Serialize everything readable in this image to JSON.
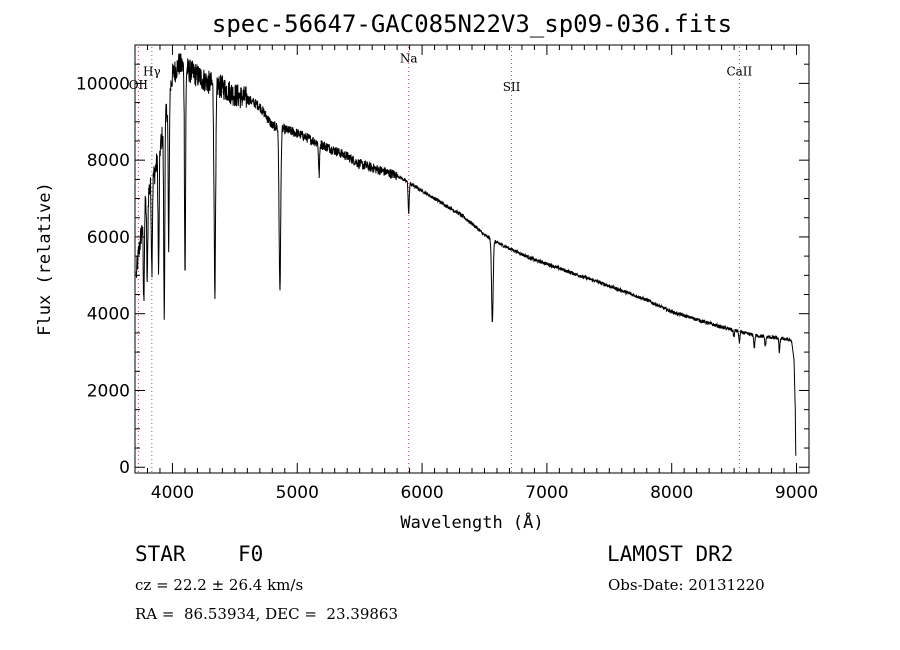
{
  "chart_data": {
    "type": "line",
    "title": "spec-56647-GAC085N22V3_sp09-036.fits",
    "xlabel": "Wavelength (Å)",
    "ylabel": "Flux (relative)",
    "xlim": [
      3700,
      9100
    ],
    "ylim": [
      -150,
      11000
    ],
    "xticks": [
      4000,
      5000,
      6000,
      7000,
      8000,
      9000
    ],
    "yticks": [
      0,
      2000,
      4000,
      6000,
      8000,
      10000
    ],
    "grid": false,
    "line_color": "#000000",
    "marker_color": "#d04040",
    "continuum": [
      [
        3710,
        5000
      ],
      [
        3730,
        5600
      ],
      [
        3760,
        6300
      ],
      [
        3790,
        7000
      ],
      [
        3820,
        7300
      ],
      [
        3860,
        7700
      ],
      [
        3900,
        8300
      ],
      [
        3950,
        9200
      ],
      [
        4000,
        10200
      ],
      [
        4050,
        10500
      ],
      [
        4100,
        10400
      ],
      [
        4150,
        10300
      ],
      [
        4200,
        10200
      ],
      [
        4300,
        10000
      ],
      [
        4400,
        9900
      ],
      [
        4500,
        9700
      ],
      [
        4600,
        9600
      ],
      [
        4700,
        9400
      ],
      [
        4800,
        8900
      ],
      [
        4900,
        8800
      ],
      [
        5000,
        8700
      ],
      [
        5100,
        8550
      ],
      [
        5200,
        8400
      ],
      [
        5300,
        8250
      ],
      [
        5400,
        8100
      ],
      [
        5500,
        7900
      ],
      [
        5600,
        7800
      ],
      [
        5700,
        7700
      ],
      [
        5800,
        7600
      ],
      [
        5900,
        7400
      ],
      [
        6000,
        7200
      ],
      [
        6100,
        7000
      ],
      [
        6200,
        6800
      ],
      [
        6300,
        6600
      ],
      [
        6400,
        6350
      ],
      [
        6500,
        6050
      ],
      [
        6600,
        5850
      ],
      [
        6700,
        5700
      ],
      [
        6800,
        5550
      ],
      [
        6900,
        5400
      ],
      [
        7000,
        5300
      ],
      [
        7100,
        5180
      ],
      [
        7200,
        5060
      ],
      [
        7300,
        4950
      ],
      [
        7400,
        4840
      ],
      [
        7500,
        4720
      ],
      [
        7600,
        4600
      ],
      [
        7700,
        4480
      ],
      [
        7800,
        4360
      ],
      [
        7900,
        4200
      ],
      [
        8000,
        4050
      ],
      [
        8100,
        3950
      ],
      [
        8200,
        3850
      ],
      [
        8300,
        3750
      ],
      [
        8400,
        3650
      ],
      [
        8500,
        3570
      ],
      [
        8600,
        3480
      ],
      [
        8700,
        3420
      ],
      [
        8800,
        3380
      ],
      [
        8900,
        3350
      ],
      [
        8960,
        3300
      ],
      [
        8980,
        2800
      ],
      [
        8990,
        1500
      ],
      [
        8995,
        0
      ]
    ],
    "absorption_lines": [
      {
        "x": 3770,
        "y": 4300
      },
      {
        "x": 3798,
        "y": 4800
      },
      {
        "x": 3835,
        "y": 5200
      },
      {
        "x": 3889,
        "y": 5000
      },
      {
        "x": 3934,
        "y": 3900
      },
      {
        "x": 3970,
        "y": 5500
      },
      {
        "x": 4101,
        "y": 5000
      },
      {
        "x": 4340,
        "y": 4700
      },
      {
        "x": 4861,
        "y": 4600
      },
      {
        "x": 5175,
        "y": 7600
      },
      {
        "x": 5893,
        "y": 6600
      },
      {
        "x": 6563,
        "y": 3800
      },
      {
        "x": 8498,
        "y": 3400
      },
      {
        "x": 8542,
        "y": 3250
      },
      {
        "x": 8662,
        "y": 3100
      },
      {
        "x": 8750,
        "y": 3150
      },
      {
        "x": 8863,
        "y": 3000
      }
    ],
    "line_markers": [
      {
        "label": "OII",
        "x": 3727,
        "label_y": 9850
      },
      {
        "label": "Hγ",
        "x": 3835,
        "label_y": 10200
      },
      {
        "label": "Na",
        "x": 5893,
        "label_y": 10550
      },
      {
        "label": "SII",
        "x": 6717,
        "label_y": 9800
      },
      {
        "label": "CaII",
        "x": 8542,
        "label_y": 10200
      }
    ]
  },
  "info": {
    "object_class": "STAR",
    "subclass": "F0",
    "survey": "LAMOST DR2",
    "redshift": "cz = 22.2 ± 26.4 km/s",
    "obs_date": "Obs-Date: 20131220",
    "coordinates": "RA =  86.53934, DEC =  23.39863"
  }
}
